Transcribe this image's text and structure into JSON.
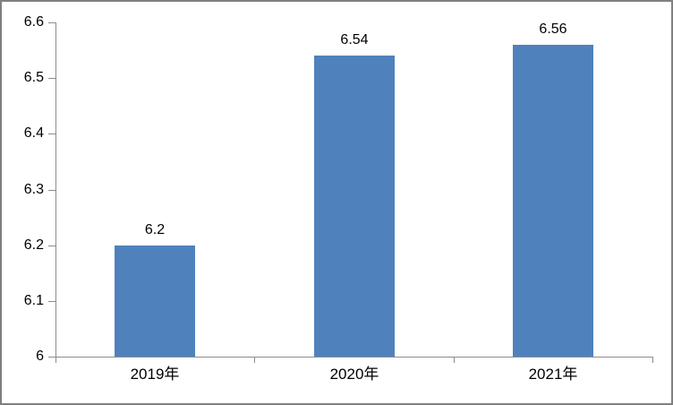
{
  "chart_data": {
    "type": "bar",
    "title": "",
    "xlabel": "",
    "ylabel": "",
    "categories": [
      "2019年",
      "2020年",
      "2021年"
    ],
    "values": [
      6.2,
      6.54,
      6.56
    ],
    "data_labels": [
      "6.2",
      "6.54",
      "6.56"
    ],
    "ylim": [
      6,
      6.6
    ],
    "y_ticks": [
      {
        "value": 6.0,
        "label": "6"
      },
      {
        "value": 6.1,
        "label": "6.1"
      },
      {
        "value": 6.2,
        "label": "6.2"
      },
      {
        "value": 6.3,
        "label": "6.3"
      },
      {
        "value": 6.4,
        "label": "6.4"
      },
      {
        "value": 6.5,
        "label": "6.5"
      },
      {
        "value": 6.6,
        "label": "6.6"
      }
    ],
    "grid": false,
    "legend_position": "none",
    "colors": {
      "bar": "#4F81BD",
      "axis": "#8C8C8C",
      "text": "#000000",
      "frame_border": "#808080",
      "background": "#FFFFFF"
    }
  }
}
